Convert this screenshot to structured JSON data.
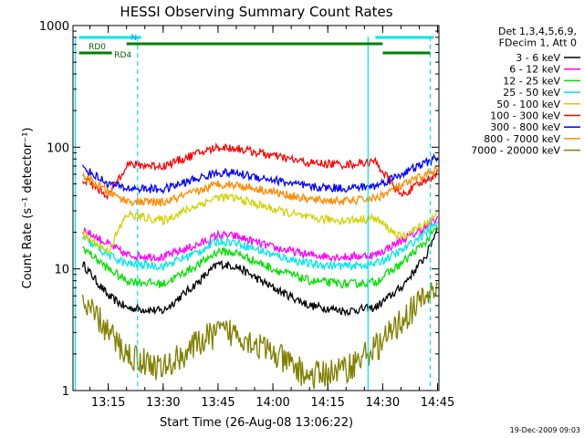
{
  "chart_data": {
    "type": "line",
    "title": "HESSI Observing Summary Count Rates",
    "xlabel": "Start Time (26-Aug-08 13:06:22)",
    "ylabel": "Count Rate (s⁻¹ detector⁻¹)",
    "yscale": "log",
    "ylim": [
      1,
      1000
    ],
    "xlim_minutes": [
      -1,
      99
    ],
    "x_ticks": [
      "13:15",
      "13:30",
      "13:45",
      "14:00",
      "14:15",
      "14:30",
      "14:45"
    ],
    "y_ticks": [
      "1",
      "10",
      "100",
      "1000"
    ],
    "grid": false,
    "legend_position": "right",
    "legend_header": [
      "Det 1,3,4,5,6,9,",
      "FDecim 1, Att 0"
    ],
    "series": [
      {
        "name": "3 - 6 keV",
        "color": "#000000",
        "x": [
          "13:08",
          "13:15",
          "13:20",
          "13:30",
          "13:40",
          "13:45",
          "13:50",
          "14:00",
          "14:10",
          "14:20",
          "14:28",
          "14:35",
          "14:42",
          "14:45"
        ],
        "y": [
          11,
          6,
          4.8,
          4.5,
          8,
          11,
          10.5,
          7,
          5,
          4.5,
          4.8,
          7,
          13,
          22
        ]
      },
      {
        "name": "6 - 12 keV",
        "color": "#ff00ff",
        "x": [
          "13:08",
          "13:15",
          "13:20",
          "13:30",
          "13:40",
          "13:45",
          "13:50",
          "14:00",
          "14:10",
          "14:20",
          "14:28",
          "14:35",
          "14:42",
          "14:45"
        ],
        "y": [
          21,
          16,
          13,
          12.5,
          16,
          19,
          18.5,
          15,
          13,
          12.5,
          13,
          17,
          22,
          26
        ]
      },
      {
        "name": "12 - 25 keV",
        "color": "#00e000",
        "x": [
          "13:08",
          "13:15",
          "13:20",
          "13:30",
          "13:40",
          "13:45",
          "13:50",
          "14:00",
          "14:10",
          "14:20",
          "14:28",
          "14:35",
          "14:42",
          "14:45"
        ],
        "y": [
          15,
          10,
          8,
          7.5,
          11,
          14,
          13.5,
          10,
          8,
          7.5,
          7.8,
          11,
          17,
          22
        ]
      },
      {
        "name": "25 - 50 keV",
        "color": "#00e8e8",
        "x": [
          "13:08",
          "13:15",
          "13:20",
          "13:30",
          "13:40",
          "13:45",
          "13:50",
          "14:00",
          "14:10",
          "14:20",
          "14:28",
          "14:35",
          "14:42",
          "14:45"
        ],
        "y": [
          18,
          13,
          11,
          10.5,
          14,
          17,
          16.5,
          13,
          11,
          10.5,
          11,
          14,
          20,
          25
        ]
      },
      {
        "name": "50 - 100 keV",
        "color": "#d2d200",
        "x": [
          "13:08",
          "13:15",
          "13:20",
          "13:30",
          "13:40",
          "13:45",
          "13:50",
          "14:00",
          "14:10",
          "14:20",
          "14:28",
          "14:35",
          "14:42",
          "14:45"
        ],
        "y": [
          19,
          14,
          28,
          25,
          34,
          39,
          38,
          31,
          26,
          25,
          26,
          18,
          24,
          28
        ]
      },
      {
        "name": "100 - 300 keV",
        "color": "#ff0000",
        "x": [
          "13:08",
          "13:15",
          "13:20",
          "13:30",
          "13:40",
          "13:45",
          "13:50",
          "14:00",
          "14:10",
          "14:20",
          "14:28",
          "14:35",
          "14:42",
          "14:45"
        ],
        "y": [
          55,
          40,
          72,
          70,
          90,
          100,
          98,
          85,
          74,
          72,
          76,
          40,
          54,
          62
        ]
      },
      {
        "name": "300 - 800 keV",
        "color": "#0000ff",
        "x": [
          "13:08",
          "13:15",
          "13:20",
          "13:30",
          "13:40",
          "13:45",
          "13:50",
          "14:00",
          "14:10",
          "14:20",
          "14:28",
          "14:35",
          "14:42",
          "14:45"
        ],
        "y": [
          68,
          50,
          46,
          45,
          56,
          62,
          61,
          54,
          47,
          46,
          48,
          60,
          75,
          82
        ]
      },
      {
        "name": "800 - 7000 keV",
        "color": "#ff8c00",
        "x": [
          "13:08",
          "13:15",
          "13:20",
          "13:30",
          "13:40",
          "13:45",
          "13:50",
          "14:00",
          "14:10",
          "14:20",
          "14:28",
          "14:35",
          "14:42",
          "14:45"
        ],
        "y": [
          58,
          43,
          36,
          35,
          44,
          50,
          49,
          43,
          37,
          36,
          38,
          48,
          60,
          66
        ]
      },
      {
        "name": "7000 - 20000 keV",
        "color": "#808000",
        "x": [
          "13:08",
          "13:12",
          "13:15",
          "13:20",
          "13:30",
          "13:40",
          "13:45",
          "13:50",
          "14:00",
          "14:10",
          "14:20",
          "14:30",
          "14:36",
          "14:42",
          "14:45"
        ],
        "y": [
          5,
          4,
          3,
          2,
          1.5,
          2.5,
          3,
          3,
          2,
          1.3,
          1.5,
          2.5,
          4,
          6,
          7
        ]
      }
    ],
    "annotations": [
      "N",
      "RD0",
      "RD4"
    ],
    "flag_bars": [
      {
        "label": "N",
        "color": "#00e8e8",
        "segments": [
          [
            "13:07",
            "13:24"
          ],
          [
            "14:28",
            "14:44"
          ]
        ]
      },
      {
        "label": "RD0",
        "color": "#008000",
        "segments": [
          [
            "13:20",
            "14:30"
          ]
        ]
      },
      {
        "label": "RD4",
        "color": "#008000",
        "segments": [
          [
            "13:07",
            "13:16"
          ],
          [
            "14:30",
            "14:43"
          ]
        ]
      }
    ],
    "vertical_lines": [
      {
        "x": "13:06",
        "style": "solid",
        "color": "#00e8e8"
      },
      {
        "x": "13:23",
        "style": "dashed",
        "color": "#00e8e8"
      },
      {
        "x": "14:26",
        "style": "solid",
        "color": "#00e8e8"
      },
      {
        "x": "14:43",
        "style": "dashed",
        "color": "#00e8e8"
      }
    ]
  },
  "footer": {
    "timestamp": "19-Dec-2009 09:03"
  },
  "colors": {
    "axis": "#000000",
    "background": "#ffffff"
  }
}
